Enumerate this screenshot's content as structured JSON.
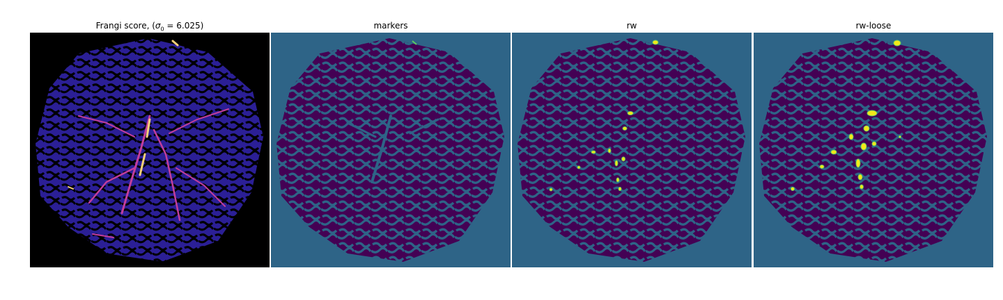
{
  "figure": {
    "panels": [
      {
        "id": "frangi",
        "title_prefix": "Frangi score, (",
        "title_math": "σ",
        "title_sub": "0",
        "title_suffix": " = 6.025)"
      },
      {
        "id": "markers",
        "title": "markers"
      },
      {
        "id": "rw",
        "title": "rw"
      },
      {
        "id": "rw-loose",
        "title": "rw-loose"
      }
    ]
  },
  "colors": {
    "frangi_background": "#000000",
    "frangi_tissue": "#2b1f96",
    "frangi_vessel_bright": "#f5d078",
    "frangi_vessel_mid": "#c23e9b",
    "seg_background": "#2e6487",
    "seg_dark": "#440154",
    "seg_highlight": "#f4e81a",
    "seg_highlight_edge": "#5ec962"
  }
}
